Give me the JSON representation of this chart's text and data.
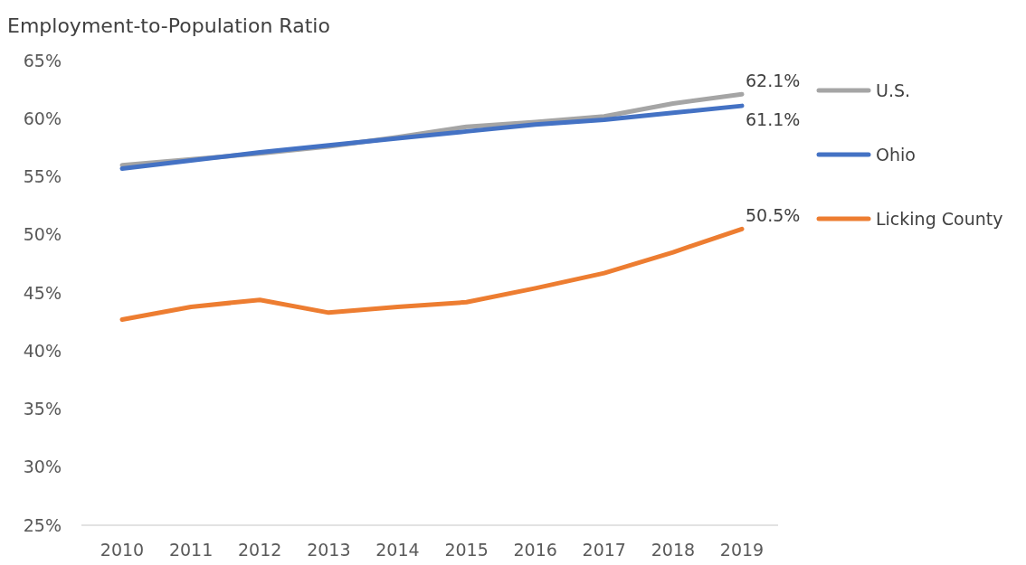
{
  "chart_data": {
    "type": "line",
    "title": "Employment-to-Population Ratio",
    "categories": [
      "2010",
      "2011",
      "2012",
      "2013",
      "2014",
      "2015",
      "2016",
      "2017",
      "2018",
      "2019"
    ],
    "series": [
      {
        "name": "U.S.",
        "color": "#a5a5a5",
        "values": [
          56.0,
          56.5,
          57.0,
          57.6,
          58.4,
          59.3,
          59.7,
          60.2,
          61.3,
          62.1
        ],
        "value_labels": [
          null,
          null,
          null,
          null,
          null,
          null,
          null,
          null,
          null,
          "62.1%"
        ]
      },
      {
        "name": "Ohio",
        "color": "#4472c4",
        "values": [
          55.7,
          56.4,
          57.1,
          57.7,
          58.3,
          58.9,
          59.5,
          59.9,
          60.5,
          61.1
        ],
        "value_labels": [
          null,
          null,
          null,
          null,
          null,
          null,
          null,
          null,
          null,
          "61.1%"
        ]
      },
      {
        "name": "Licking County",
        "color": "#ed7d31",
        "values": [
          42.7,
          43.8,
          44.4,
          43.3,
          43.8,
          44.2,
          45.4,
          46.7,
          48.5,
          50.5
        ],
        "value_labels": [
          null,
          null,
          null,
          null,
          null,
          null,
          null,
          null,
          null,
          "50.5%"
        ]
      }
    ],
    "ylim": [
      25,
      65
    ],
    "yticks": [
      {
        "value": 25,
        "label": "25%"
      },
      {
        "value": 30,
        "label": "30%"
      },
      {
        "value": 35,
        "label": "35%"
      },
      {
        "value": 40,
        "label": "40%"
      },
      {
        "value": 45,
        "label": "45%"
      },
      {
        "value": 50,
        "label": "50%"
      },
      {
        "value": 55,
        "label": "55%"
      },
      {
        "value": 60,
        "label": "60%"
      },
      {
        "value": 65,
        "label": "65%"
      }
    ],
    "grid": false,
    "legend": "right",
    "marker": "none",
    "line_style": "solid"
  }
}
